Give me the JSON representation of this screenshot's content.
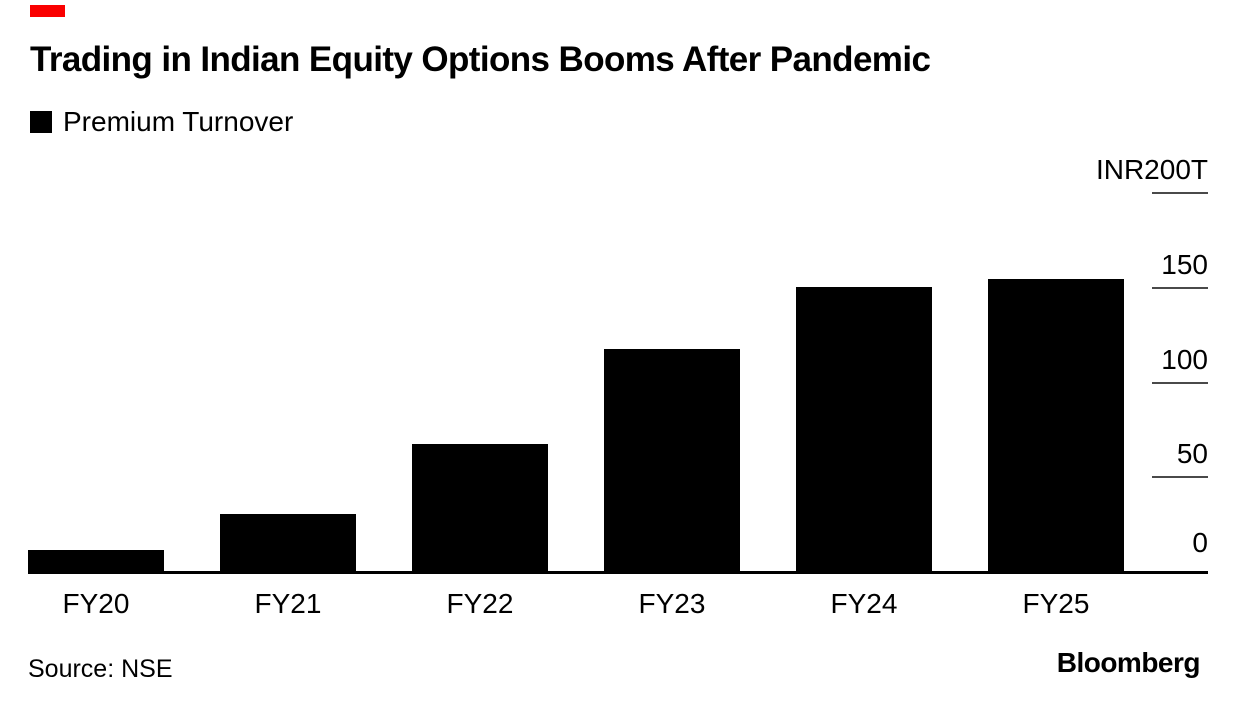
{
  "brand": {
    "accent_color": "#fa0000",
    "logo_text": "Bloomberg"
  },
  "header": {
    "title": "Trading in Indian Equity Options Booms After Pandemic"
  },
  "legend": {
    "items": [
      {
        "label": "Premium Turnover",
        "color": "#000000"
      }
    ]
  },
  "footer": {
    "source": "Source: NSE"
  },
  "chart_data": {
    "type": "bar",
    "title": "Trading in Indian Equity Options Booms After Pandemic",
    "series_name": "Premium Turnover",
    "categories": [
      "FY20",
      "FY21",
      "FY22",
      "FY23",
      "FY24",
      "FY25"
    ],
    "values": [
      12,
      31,
      68,
      118,
      151,
      155
    ],
    "unit": "INR trillions",
    "bar_color": "#000000",
    "grid": false,
    "legend_position": "top-left",
    "y_axis": {
      "position": "right",
      "min": 0,
      "max": 200,
      "top_tick_label": "INR200T",
      "ticks": [
        200,
        150,
        100,
        50,
        0
      ],
      "tick_labels": [
        "INR200T",
        "150",
        "100",
        "50",
        "0"
      ],
      "tick_color": "#4a4a4a"
    }
  }
}
